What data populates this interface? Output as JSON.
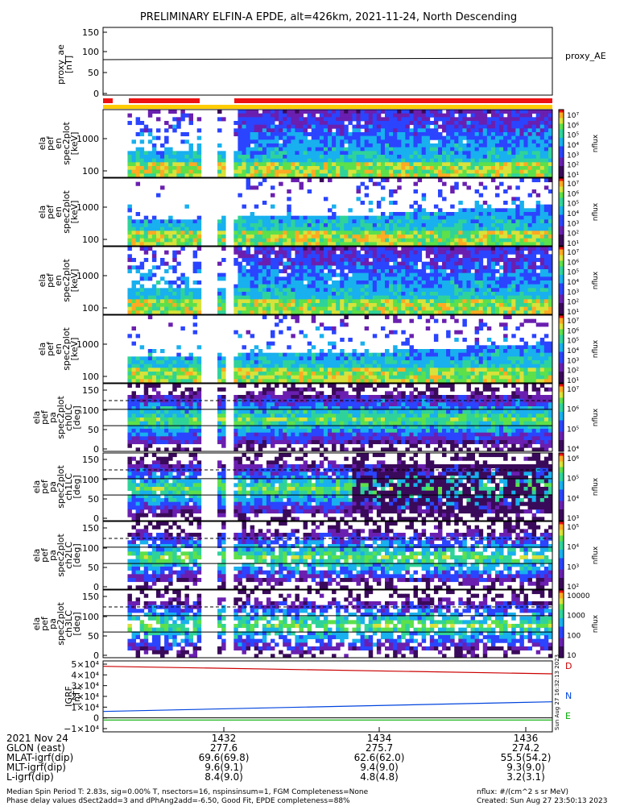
{
  "title": "PRELIMINARY ELFIN-A EPDE, alt=426km, 2021-11-24, North Descending",
  "colors": {
    "trace": "#000000",
    "D": "#cc0000",
    "N": "#0044dd",
    "E": "#00aa00",
    "status_red": "#ee1111",
    "status_yellow": "#ffcc00"
  },
  "proxy": {
    "ylabel_lines": [
      "proxy_ae",
      "[nT]"
    ],
    "ticks": [
      "150",
      "100",
      "50",
      "0"
    ],
    "legend": "proxy_AE",
    "value": 80
  },
  "spectro_panels": [
    {
      "ylabel_lines": [
        "ela",
        "pef",
        "en",
        "spec2plot",
        "[keV]"
      ],
      "yticks": [
        "1000",
        "100"
      ],
      "cbar_ticks": [
        "10⁷",
        "10⁶",
        "10⁵",
        "10⁴",
        "10³",
        "10²",
        "10¹"
      ],
      "cbar_label": "nflux"
    },
    {
      "ylabel_lines": [
        "ela",
        "pef",
        "en",
        "spec2plot",
        "[keV]"
      ],
      "yticks": [
        "1000",
        "100"
      ],
      "cbar_ticks": [
        "10⁷",
        "10⁶",
        "10⁵",
        "10⁴",
        "10³",
        "10²",
        "10¹"
      ],
      "cbar_label": "nflux"
    },
    {
      "ylabel_lines": [
        "ela",
        "pef",
        "en",
        "spec2plot",
        "[keV]"
      ],
      "yticks": [
        "1000",
        "100"
      ],
      "cbar_ticks": [
        "10⁷",
        "10⁶",
        "10⁵",
        "10⁴",
        "10³",
        "10²",
        "10¹"
      ],
      "cbar_label": "nflux"
    },
    {
      "ylabel_lines": [
        "ela",
        "pef",
        "en",
        "spec2plot",
        "[keV]"
      ],
      "yticks": [
        "1000",
        "100"
      ],
      "cbar_ticks": [
        "10⁷",
        "10⁶",
        "10⁵",
        "10⁴",
        "10³",
        "10²",
        "10¹"
      ],
      "cbar_label": "nflux"
    },
    {
      "ylabel_lines": [
        "ela",
        "pef",
        "pa",
        "spec2plot",
        "ch0LC",
        "[deg]"
      ],
      "yticks": [
        "150",
        "100",
        "50",
        "0"
      ],
      "cbar_ticks": [
        "10⁷",
        "10⁶",
        "10⁵",
        "10⁴"
      ],
      "cbar_label": "nflux"
    },
    {
      "ylabel_lines": [
        "ela",
        "pef",
        "pa",
        "spec2plot",
        "ch1LC",
        "[deg]"
      ],
      "yticks": [
        "150",
        "100",
        "50",
        "0"
      ],
      "cbar_ticks": [
        "10⁶",
        "10⁵",
        "10⁴",
        "10³"
      ],
      "cbar_label": "nflux"
    },
    {
      "ylabel_lines": [
        "ela",
        "pef",
        "pa",
        "spec2plot",
        "ch2LC",
        "[deg]"
      ],
      "yticks": [
        "150",
        "100",
        "50",
        "0"
      ],
      "cbar_ticks": [
        "10⁵",
        "10⁴",
        "10³",
        "10²"
      ],
      "cbar_label": "nflux"
    },
    {
      "ylabel_lines": [
        "ela",
        "pef",
        "pa",
        "spec2plot",
        "ch3LC",
        "[deg]"
      ],
      "yticks": [
        "150",
        "100",
        "50",
        "0"
      ],
      "cbar_ticks": [
        "10000",
        "1000",
        "100",
        "10"
      ],
      "cbar_label": "nflux"
    }
  ],
  "igrf": {
    "ylabel_lines": [
      "IGRF",
      "[nT]"
    ],
    "ticks": [
      "5×10⁴",
      "4×10⁴",
      "3×10⁴",
      "2×10⁴",
      "1×10⁴",
      "0",
      "−1×10⁴"
    ],
    "legend": [
      "D",
      "N",
      "E"
    ],
    "side_note": "Sun Aug 27 16:32:13 2023"
  },
  "footer": {
    "row_labels": [
      "2021 Nov 24",
      "GLON (east)",
      "MLAT-igrf(dip)",
      "MLT-igrf(dip)",
      "L-igrf(dip)"
    ],
    "columns": [
      {
        "label": "1432",
        "rows": [
          "277.6",
          "69.6(69.8)",
          "9.6(9.1)",
          "8.4(9.0)"
        ]
      },
      {
        "label": "1434",
        "rows": [
          "275.7",
          "62.6(62.0)",
          "9.4(9.0)",
          "4.8(4.8)"
        ]
      },
      {
        "label": "1436",
        "rows": [
          "274.2",
          "55.5(54.2)",
          "9.3(9.0)",
          "3.2(3.1)"
        ]
      }
    ],
    "note_left_1": "Median Spin Period T: 2.83s, sig=0.00% T, nsectors=16, nspinsinsum=1, FGM Completeness=None",
    "note_left_2": "Phase delay values dSect2add=3 and dPhAng2add=-6.50, Good Fit, EPDE completeness=88%",
    "note_right_1": "nflux: #/(cm^2 s sr MeV)",
    "note_right_2": "Created: Sun Aug 27 23:50:13 2023"
  },
  "chart_data": {
    "type": "heatmap",
    "title": "PRELIMINARY ELFIN-A EPDE, alt=426km, 2021-11-24, North Descending",
    "x_tick_labels": [
      "1432",
      "1434",
      "1436"
    ],
    "proxy_ae": {
      "ylim": [
        0,
        150
      ],
      "value": 80
    },
    "energy_axis_keV": {
      "scale": "log",
      "ticks": [
        100,
        1000
      ]
    },
    "pitch_angle_axis_deg": {
      "ylim": [
        0,
        180
      ],
      "ticks": [
        0,
        50,
        100,
        150
      ]
    },
    "igrf_nT": {
      "ylim": [
        -10000,
        50000
      ],
      "series": [
        {
          "name": "D",
          "start": 48000,
          "end": 41000
        },
        {
          "name": "N",
          "start": 6000,
          "end": 15000
        },
        {
          "name": "E",
          "start": -2000,
          "end": -2000
        }
      ]
    }
  }
}
